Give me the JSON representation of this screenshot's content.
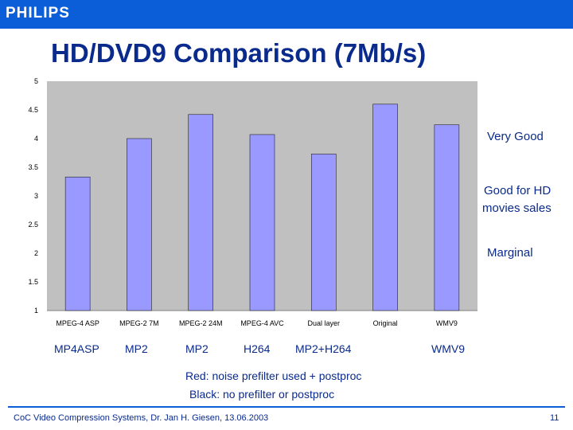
{
  "header": {
    "logo": "PHILIPS",
    "title": "HD/DVD9 Comparison (7Mb/s)"
  },
  "ratings": {
    "very_good": "Very Good",
    "good_hd_line1": "Good for HD",
    "good_hd_line2": "movies sales",
    "marginal": "Marginal"
  },
  "chart_data": {
    "type": "bar",
    "title": "HD/DVD9 Comparison (7Mb/s)",
    "categories": [
      "MPEG-4 ASP",
      "MPEG-2 7M",
      "MPEG-2 24M",
      "MPEG-4 AVC",
      "Dual layer",
      "Original",
      "WMV9"
    ],
    "values": [
      3.33,
      4.0,
      4.42,
      4.07,
      3.73,
      4.6,
      4.24
    ],
    "ylim": [
      1,
      5
    ],
    "yticks": [
      "5",
      "4.5",
      "4",
      "3.5",
      "3",
      "2.5",
      "2",
      "1.5",
      "1"
    ],
    "xlabel": "",
    "ylabel": "",
    "grid": false,
    "bar_color": "#9999ff",
    "plot_bg": "#c0c0c0"
  },
  "segment_labels": [
    "MP4ASP",
    "MP2",
    "MP2",
    "H264",
    "MP2+H264",
    "WMV9"
  ],
  "notes": {
    "red": "Red: noise prefilter used + postproc",
    "black": "Black: no prefilter or postproc"
  },
  "footer": {
    "credit": "CoC Video Compression Systems, Dr. Jan H. Giesen, 13.06.2003",
    "page": "11"
  }
}
